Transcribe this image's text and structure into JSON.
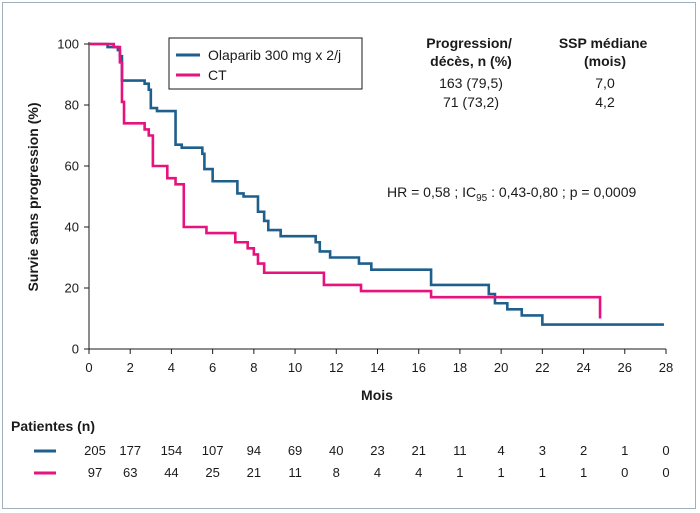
{
  "chart_data": {
    "type": "line",
    "xlabel": "Mois",
    "ylabel": "Survie sans progression (%)",
    "xlim": [
      0,
      28
    ],
    "ylim": [
      0,
      100
    ],
    "xticks": [
      0,
      2,
      4,
      6,
      8,
      10,
      12,
      14,
      16,
      18,
      20,
      22,
      24,
      26,
      28
    ],
    "yticks": [
      0,
      20,
      40,
      60,
      80,
      100
    ],
    "grid": false,
    "legend_position": "top-left",
    "series": [
      {
        "name": "Olaparib 300 mg x 2/j",
        "color": "#1f5f8b",
        "x": [
          0,
          0.6,
          0.9,
          1.0,
          1.2,
          1.4,
          1.5,
          1.6,
          2.5,
          2.7,
          2.9,
          3.0,
          3.3,
          4.1,
          4.2,
          4.5,
          5.5,
          5.6,
          6.0,
          6.8,
          7.2,
          7.5,
          8.2,
          8.5,
          8.7,
          9.3,
          10.8,
          11.0,
          11.2,
          11.7,
          13.1,
          13.7,
          16.6,
          19.4,
          19.7,
          20.3,
          21.0,
          22.0,
          27.9
        ],
        "y": [
          100,
          100,
          99,
          99,
          99,
          98,
          96,
          88,
          88,
          87,
          85,
          79,
          78,
          78,
          67,
          66,
          64,
          59,
          55,
          55,
          51,
          50,
          45,
          42,
          39,
          37,
          37,
          35,
          32,
          30,
          28,
          26,
          21,
          18,
          15,
          13,
          11,
          8,
          8
        ]
      },
      {
        "name": "CT",
        "color": "#e6127e",
        "x": [
          0,
          1.2,
          1.5,
          1.6,
          1.7,
          2.5,
          2.7,
          2.9,
          3.1,
          3.8,
          4.2,
          4.6,
          5.7,
          7.1,
          7.7,
          8.0,
          8.2,
          8.5,
          11.4,
          13.2,
          16.6,
          24.8
        ],
        "y": [
          100,
          99,
          94,
          81,
          74,
          74,
          72,
          70,
          60,
          56,
          54,
          40,
          38,
          35,
          33,
          31,
          28,
          25,
          21,
          19,
          17,
          10
        ]
      }
    ],
    "table_headers": {
      "events": "Progression/\ndécès, n (%)",
      "median": "SSP médiane\n(mois)"
    },
    "table_rows": [
      {
        "events": "163 (79,5)",
        "median": "7,0"
      },
      {
        "events": "71 (73,2)",
        "median": "4,2"
      }
    ],
    "annotation": {
      "prefix": "HR = 0,58 ; IC",
      "subscript": "95",
      "suffix": " : 0,43-0,80 ; p = 0,0009"
    },
    "risk_table": {
      "title": "Patientes (n)",
      "times": [
        0,
        2,
        4,
        6,
        8,
        10,
        12,
        14,
        16,
        18,
        20,
        22,
        24,
        26,
        28
      ],
      "rows": [
        {
          "color": "#1f5f8b",
          "values": [
            205,
            177,
            154,
            107,
            94,
            69,
            40,
            23,
            21,
            11,
            4,
            3,
            2,
            1,
            0
          ]
        },
        {
          "color": "#e6127e",
          "values": [
            97,
            63,
            44,
            25,
            21,
            11,
            8,
            4,
            4,
            1,
            1,
            1,
            1,
            0,
            0
          ]
        }
      ]
    }
  }
}
